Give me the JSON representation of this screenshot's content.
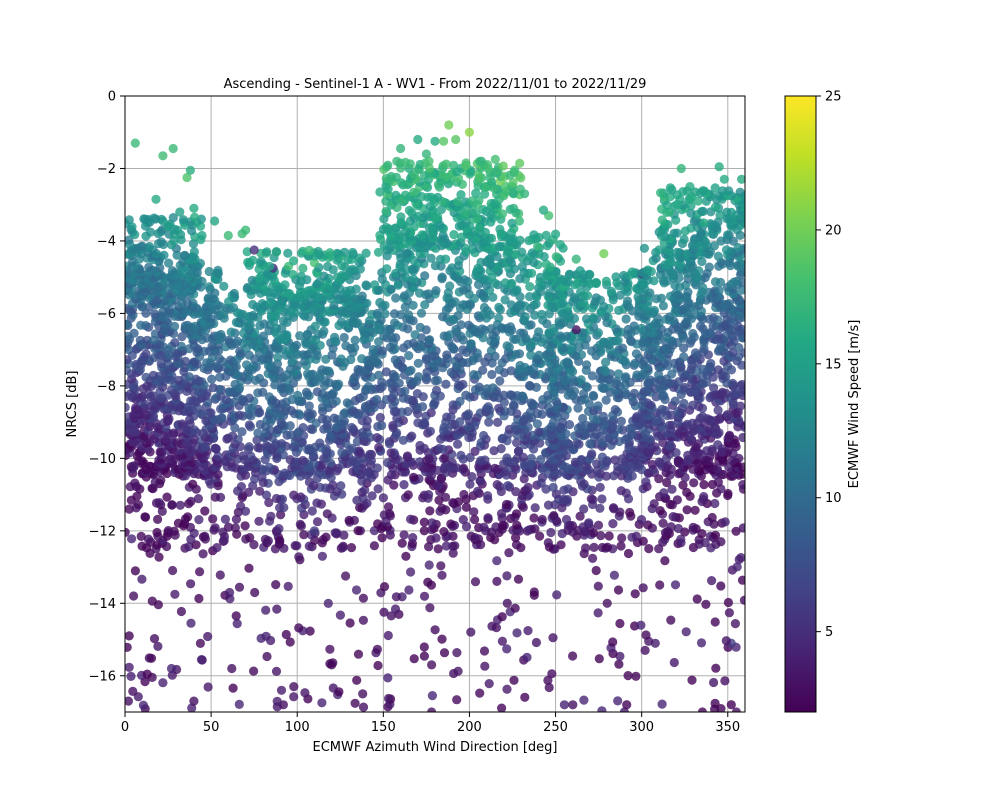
{
  "chart_data": {
    "type": "scatter",
    "title": "Ascending - Sentinel-1 A - WV1 - From 2022/11/01 to 2022/11/29",
    "xlabel": "ECMWF Azimuth Wind Direction [deg]",
    "ylabel": "NRCS [dB]",
    "xlim": [
      0,
      360
    ],
    "ylim": [
      -17,
      0
    ],
    "xticks": [
      "0",
      "50",
      "100",
      "150",
      "200",
      "250",
      "300",
      "350"
    ],
    "yticks": [
      "0",
      "−2",
      "−4",
      "−6",
      "−8",
      "−10",
      "−12",
      "−14",
      "−16"
    ],
    "grid": true,
    "marker_alpha": 0.8,
    "colormap": "viridis",
    "colorbar": {
      "label": "ECMWF Wind Speed [m/s]",
      "range": [
        2,
        25
      ],
      "ticks": [
        "5",
        "10",
        "15",
        "20",
        "25"
      ]
    },
    "points": [
      [
        6,
        -1.3,
        17.5
      ],
      [
        22,
        -1.65,
        17.6
      ],
      [
        28,
        -1.45,
        17.4
      ],
      [
        36,
        -2.25,
        18.5
      ],
      [
        38,
        -2.05,
        16.5
      ],
      [
        18,
        -2.85,
        16
      ],
      [
        40,
        -3.1,
        16
      ],
      [
        52,
        -3.45,
        15.5
      ],
      [
        60,
        -3.85,
        17.5
      ],
      [
        68,
        -3.8,
        17.5
      ],
      [
        70,
        -3.7,
        17.5
      ],
      [
        88,
        -4.3,
        18.5
      ],
      [
        75,
        -4.25,
        5
      ],
      [
        86,
        -4.75,
        5
      ],
      [
        95,
        -4.7,
        17.5
      ],
      [
        110,
        -4.6,
        18
      ],
      [
        148,
        -2.65,
        16
      ],
      [
        160,
        -1.45,
        17
      ],
      [
        165,
        -2.0,
        16
      ],
      [
        170,
        -1.2,
        16
      ],
      [
        175,
        -1.6,
        17
      ],
      [
        180,
        -1.25,
        16
      ],
      [
        185,
        -1.25,
        19
      ],
      [
        188,
        -0.8,
        20
      ],
      [
        192,
        -1.2,
        19
      ],
      [
        198,
        -1.85,
        18
      ],
      [
        200,
        -1.0,
        21
      ],
      [
        207,
        -1.8,
        17
      ],
      [
        215,
        -1.75,
        18
      ],
      [
        218,
        -2.35,
        20
      ],
      [
        225,
        -2.5,
        17
      ],
      [
        232,
        -2.7,
        17
      ],
      [
        246,
        -3.3,
        18
      ],
      [
        243,
        -3.15,
        16
      ],
      [
        262,
        -4.5,
        17
      ],
      [
        278,
        -4.35,
        20
      ],
      [
        323,
        -2.0,
        17
      ],
      [
        328,
        -2.5,
        16
      ],
      [
        345,
        -1.95,
        16
      ],
      [
        348,
        -2.3,
        16
      ],
      [
        358,
        -2.3,
        16
      ],
      [
        355,
        -2.8,
        16
      ],
      [
        336,
        -3.5,
        16
      ],
      [
        262,
        -6.45,
        3
      ],
      [
        300,
        -4.9,
        5
      ],
      [
        92,
        -16.8,
        3
      ],
      [
        98,
        -16.3,
        3
      ],
      [
        355,
        -17.0,
        3
      ],
      [
        178,
        -17.0,
        3
      ],
      [
        2,
        -16.7,
        3
      ],
      [
        40,
        -16.7,
        3
      ],
      [
        260,
        -16.8,
        3
      ],
      [
        5,
        -13.8,
        3
      ],
      [
        62,
        -15.8,
        3
      ],
      [
        120,
        -15.7,
        3
      ],
      [
        178,
        -15.7,
        3
      ],
      [
        302,
        -15.3,
        3
      ],
      [
        352,
        -15.1,
        6
      ],
      [
        110,
        -12.0,
        6
      ],
      [
        346,
        -12.3,
        3
      ],
      [
        280,
        -14.0,
        3
      ],
      [
        222,
        -14.0,
        3
      ],
      [
        18,
        -12.5,
        3
      ],
      [
        232,
        -10.9,
        3
      ],
      [
        138,
        -16.5,
        3
      ]
    ],
    "clusters": [
      {
        "x": [
          0,
          55
        ],
        "y": [
          -10.5,
          -4.8
        ],
        "n": 700
      },
      {
        "x": [
          0,
          45
        ],
        "y": [
          -5.5,
          -3.2
        ],
        "n": 160
      },
      {
        "x": [
          55,
          145
        ],
        "y": [
          -10.5,
          -5.2
        ],
        "n": 750
      },
      {
        "x": [
          70,
          140
        ],
        "y": [
          -6.0,
          -4.2
        ],
        "n": 170
      },
      {
        "x": [
          145,
          255
        ],
        "y": [
          -10.5,
          -3.8
        ],
        "n": 900
      },
      {
        "x": [
          150,
          230
        ],
        "y": [
          -4.2,
          -1.8
        ],
        "n": 330
      },
      {
        "x": [
          245,
          305
        ],
        "y": [
          -10.5,
          -4.8
        ],
        "n": 520
      },
      {
        "x": [
          300,
          360
        ],
        "y": [
          -10.5,
          -4.2
        ],
        "n": 700
      },
      {
        "x": [
          310,
          360
        ],
        "y": [
          -4.5,
          -2.5
        ],
        "n": 170
      },
      {
        "x": [
          0,
          360
        ],
        "y": [
          -12.5,
          -10.0
        ],
        "n": 620
      },
      {
        "x": [
          0,
          360
        ],
        "y": [
          -17.0,
          -12.0
        ],
        "n": 260
      }
    ]
  }
}
